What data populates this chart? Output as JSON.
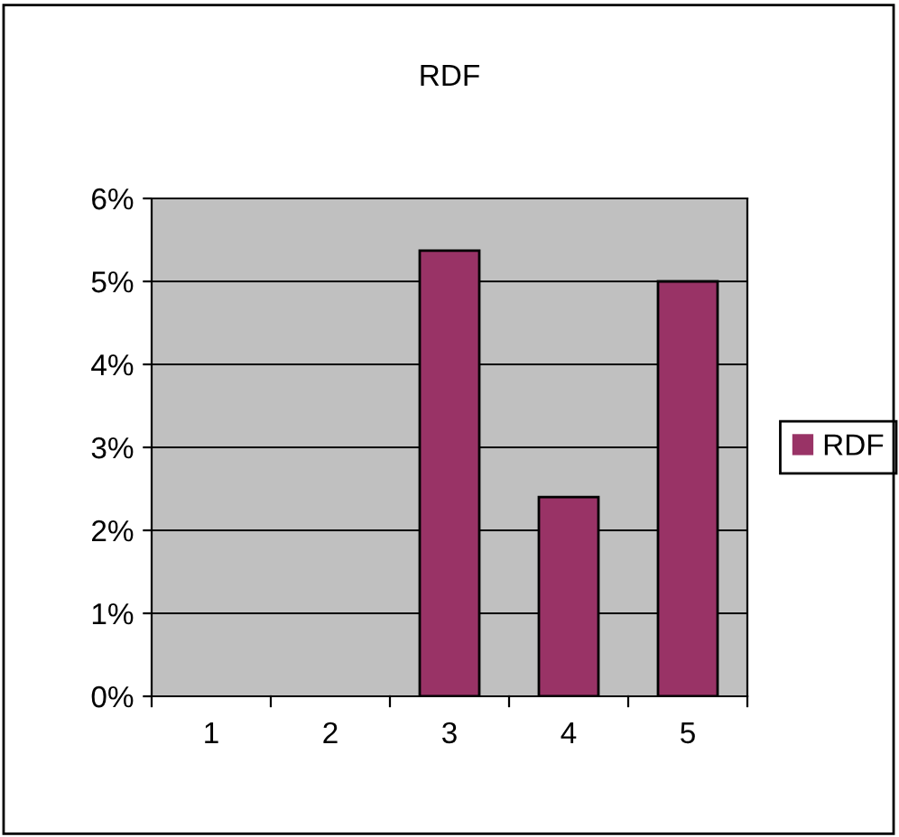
{
  "chart_data": {
    "type": "bar",
    "title": "RDF",
    "categories": [
      "1",
      "2",
      "3",
      "4",
      "5"
    ],
    "series": [
      {
        "name": "RDF",
        "color": "#993366",
        "values": [
          0,
          0,
          5.37,
          2.4,
          5.0
        ]
      }
    ],
    "ylim": [
      0,
      6
    ],
    "yticks": [
      {
        "value": 0,
        "label": "0%"
      },
      {
        "value": 1,
        "label": "1%"
      },
      {
        "value": 2,
        "label": "2%"
      },
      {
        "value": 3,
        "label": "3%"
      },
      {
        "value": 4,
        "label": "4%"
      },
      {
        "value": 5,
        "label": "5%"
      },
      {
        "value": 6,
        "label": "6%"
      }
    ],
    "grid": "y",
    "legend": "right"
  }
}
